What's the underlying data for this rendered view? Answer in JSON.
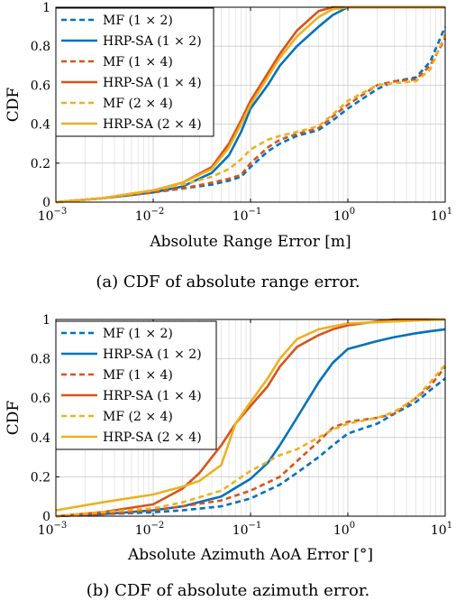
{
  "chart_data": [
    {
      "type": "line",
      "caption": "(a) CDF of absolute range error.",
      "xlabel": "Absolute Range Error [m]",
      "ylabel": "CDF",
      "xscale": "log",
      "xlim": [
        0.001,
        10
      ],
      "ylim": [
        0,
        1
      ],
      "x_tick_labels": [
        {
          "base": "10",
          "exp": "−3",
          "value": 0.001
        },
        {
          "base": "10",
          "exp": "−2",
          "value": 0.01
        },
        {
          "base": "10",
          "exp": "−1",
          "value": 0.1
        },
        {
          "base": "10",
          "exp": "0",
          "value": 1
        },
        {
          "base": "10",
          "exp": "1",
          "value": 10
        }
      ],
      "y_tick_labels": [
        "0",
        "0.2",
        "0.4",
        "0.6",
        "0.8",
        "1"
      ],
      "y_tick_values": [
        0,
        0.2,
        0.4,
        0.6,
        0.8,
        1
      ],
      "grid": true,
      "legend_position": "top-left",
      "series": [
        {
          "name": "MF (1 × 2)",
          "color": "#0072BD",
          "style": "dashed",
          "x": [
            0.001,
            0.003,
            0.01,
            0.02,
            0.04,
            0.06,
            0.08,
            0.1,
            0.15,
            0.2,
            0.3,
            0.5,
            0.7,
            1,
            2,
            3,
            5,
            7,
            10
          ],
          "y": [
            0.0,
            0.02,
            0.05,
            0.07,
            0.09,
            0.11,
            0.13,
            0.18,
            0.26,
            0.3,
            0.34,
            0.37,
            0.42,
            0.48,
            0.58,
            0.62,
            0.64,
            0.72,
            0.9
          ]
        },
        {
          "name": "HRP-SA (1 × 2)",
          "color": "#0072BD",
          "style": "solid",
          "x": [
            0.001,
            0.003,
            0.01,
            0.02,
            0.04,
            0.06,
            0.08,
            0.1,
            0.15,
            0.2,
            0.3,
            0.5,
            0.7,
            1,
            10
          ],
          "y": [
            0.0,
            0.02,
            0.05,
            0.08,
            0.15,
            0.24,
            0.36,
            0.48,
            0.6,
            0.7,
            0.8,
            0.9,
            0.96,
            1.0,
            1.0
          ]
        },
        {
          "name": "MF (1 × 4)",
          "color": "#D95319",
          "style": "dashed",
          "x": [
            0.001,
            0.003,
            0.01,
            0.02,
            0.04,
            0.06,
            0.08,
            0.1,
            0.15,
            0.2,
            0.3,
            0.5,
            0.7,
            1,
            2,
            3,
            5,
            7,
            10
          ],
          "y": [
            0.0,
            0.02,
            0.05,
            0.07,
            0.1,
            0.12,
            0.14,
            0.2,
            0.28,
            0.32,
            0.35,
            0.38,
            0.44,
            0.5,
            0.6,
            0.62,
            0.63,
            0.7,
            0.84
          ]
        },
        {
          "name": "HRP-SA (1 × 4)",
          "color": "#D95319",
          "style": "solid",
          "x": [
            0.001,
            0.003,
            0.01,
            0.02,
            0.04,
            0.06,
            0.08,
            0.1,
            0.15,
            0.2,
            0.3,
            0.5,
            0.7,
            1,
            10
          ],
          "y": [
            0.0,
            0.02,
            0.06,
            0.1,
            0.18,
            0.3,
            0.42,
            0.52,
            0.66,
            0.76,
            0.88,
            0.98,
            1.0,
            1.0,
            1.0
          ]
        },
        {
          "name": "MF (2 × 4)",
          "color": "#EDB120",
          "style": "dashed",
          "x": [
            0.001,
            0.003,
            0.01,
            0.02,
            0.04,
            0.06,
            0.08,
            0.1,
            0.15,
            0.2,
            0.3,
            0.5,
            0.7,
            1,
            2,
            3,
            5,
            7,
            10
          ],
          "y": [
            0.0,
            0.02,
            0.06,
            0.09,
            0.13,
            0.17,
            0.22,
            0.27,
            0.32,
            0.34,
            0.36,
            0.39,
            0.45,
            0.52,
            0.6,
            0.61,
            0.62,
            0.68,
            0.86
          ]
        },
        {
          "name": "HRP-SA (2 × 4)",
          "color": "#EDB120",
          "style": "solid",
          "x": [
            0.001,
            0.003,
            0.01,
            0.02,
            0.04,
            0.06,
            0.08,
            0.1,
            0.15,
            0.2,
            0.3,
            0.5,
            0.7,
            1,
            10
          ],
          "y": [
            0.0,
            0.02,
            0.06,
            0.1,
            0.17,
            0.28,
            0.4,
            0.5,
            0.64,
            0.74,
            0.85,
            0.95,
            0.99,
            1.0,
            1.0
          ]
        }
      ]
    },
    {
      "type": "line",
      "caption": "(b) CDF of absolute azimuth error.",
      "xlabel": "Absolute Azimuth AoA Error [°]",
      "ylabel": "CDF",
      "xscale": "log",
      "xlim": [
        0.001,
        10
      ],
      "ylim": [
        0,
        1
      ],
      "x_tick_labels": [
        {
          "base": "10",
          "exp": "−3",
          "value": 0.001
        },
        {
          "base": "10",
          "exp": "−2",
          "value": 0.01
        },
        {
          "base": "10",
          "exp": "−1",
          "value": 0.1
        },
        {
          "base": "10",
          "exp": "0",
          "value": 1
        },
        {
          "base": "10",
          "exp": "1",
          "value": 10
        }
      ],
      "y_tick_labels": [
        "0",
        "0.2",
        "0.4",
        "0.6",
        "0.8",
        "1"
      ],
      "y_tick_values": [
        0,
        0.2,
        0.4,
        0.6,
        0.8,
        1
      ],
      "grid": true,
      "legend_position": "top-left",
      "series": [
        {
          "name": "MF (1 × 2)",
          "color": "#0072BD",
          "style": "dashed",
          "x": [
            0.001,
            0.003,
            0.01,
            0.02,
            0.05,
            0.1,
            0.2,
            0.3,
            0.5,
            0.7,
            1,
            2,
            3,
            5,
            7,
            10
          ],
          "y": [
            0.0,
            0.01,
            0.02,
            0.03,
            0.05,
            0.09,
            0.16,
            0.22,
            0.3,
            0.36,
            0.42,
            0.47,
            0.52,
            0.58,
            0.64,
            0.7
          ]
        },
        {
          "name": "HRP-SA (1 × 2)",
          "color": "#0072BD",
          "style": "solid",
          "x": [
            0.001,
            0.003,
            0.01,
            0.02,
            0.05,
            0.1,
            0.15,
            0.2,
            0.3,
            0.5,
            0.7,
            1,
            2,
            3,
            5,
            7,
            10
          ],
          "y": [
            0.0,
            0.01,
            0.03,
            0.05,
            0.1,
            0.19,
            0.27,
            0.36,
            0.5,
            0.68,
            0.78,
            0.85,
            0.89,
            0.91,
            0.93,
            0.94,
            0.95
          ]
        },
        {
          "name": "MF (1 × 4)",
          "color": "#D95319",
          "style": "dashed",
          "x": [
            0.001,
            0.003,
            0.01,
            0.02,
            0.05,
            0.1,
            0.2,
            0.3,
            0.5,
            0.7,
            1,
            2,
            3,
            5,
            7,
            10
          ],
          "y": [
            0.0,
            0.01,
            0.03,
            0.05,
            0.08,
            0.13,
            0.2,
            0.28,
            0.38,
            0.45,
            0.48,
            0.5,
            0.52,
            0.6,
            0.66,
            0.76
          ]
        },
        {
          "name": "HRP-SA (1 × 4)",
          "color": "#D95319",
          "style": "solid",
          "x": [
            0.001,
            0.003,
            0.01,
            0.02,
            0.03,
            0.05,
            0.07,
            0.1,
            0.15,
            0.2,
            0.3,
            0.5,
            0.7,
            1,
            2,
            3,
            10
          ],
          "y": [
            0.0,
            0.02,
            0.06,
            0.14,
            0.22,
            0.36,
            0.47,
            0.56,
            0.66,
            0.76,
            0.86,
            0.92,
            0.95,
            0.97,
            0.99,
            1.0,
            1.0
          ]
        },
        {
          "name": "MF (2 × 4)",
          "color": "#EDB120",
          "style": "dashed",
          "x": [
            0.001,
            0.003,
            0.01,
            0.02,
            0.05,
            0.1,
            0.2,
            0.3,
            0.5,
            0.7,
            1,
            2,
            3,
            5,
            7,
            10
          ],
          "y": [
            0.0,
            0.02,
            0.04,
            0.07,
            0.13,
            0.23,
            0.31,
            0.34,
            0.4,
            0.44,
            0.47,
            0.5,
            0.53,
            0.6,
            0.68,
            0.77
          ]
        },
        {
          "name": "HRP-SA (2 × 4)",
          "color": "#EDB120",
          "style": "solid",
          "x": [
            0.001,
            0.003,
            0.01,
            0.02,
            0.03,
            0.05,
            0.07,
            0.1,
            0.15,
            0.2,
            0.3,
            0.5,
            1,
            3,
            10
          ],
          "y": [
            0.03,
            0.07,
            0.11,
            0.15,
            0.18,
            0.26,
            0.47,
            0.58,
            0.7,
            0.8,
            0.9,
            0.95,
            0.98,
            0.99,
            1.0
          ]
        }
      ]
    }
  ]
}
